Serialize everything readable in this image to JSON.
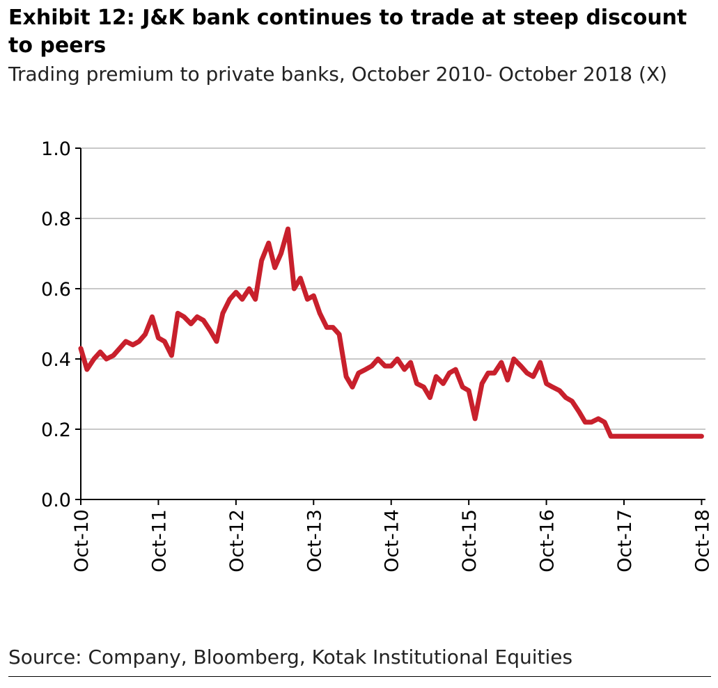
{
  "title": "Exhibit 12: J&K bank continues to trade at steep discount to peers",
  "subtitle": "Trading premium to private banks, October 2010- October 2018 (X)",
  "source": "Source: Company, Bloomberg, Kotak Institutional Equities",
  "chart_data": {
    "type": "line",
    "xlabel": "",
    "ylabel": "",
    "ylim": [
      0,
      1.0
    ],
    "xlim": [
      2010.75,
      2018.8
    ],
    "y_ticks": [
      "0.0",
      "0.2",
      "0.4",
      "0.6",
      "0.8",
      "1.0"
    ],
    "x_ticks": [
      "Oct-10",
      "Oct-11",
      "Oct-12",
      "Oct-13",
      "Oct-14",
      "Oct-15",
      "Oct-16",
      "Oct-17",
      "Oct-18"
    ],
    "grid": "horizontal",
    "legend": "none",
    "series_color": "#c8202c",
    "series": [
      {
        "x": [
          2010.75,
          2010.83,
          2010.92,
          2011.0,
          2011.08,
          2011.17,
          2011.25,
          2011.33,
          2011.42,
          2011.5,
          2011.58,
          2011.67,
          2011.75,
          2011.83,
          2011.92,
          2012.0,
          2012.08,
          2012.17,
          2012.25,
          2012.33,
          2012.42,
          2012.5,
          2012.58,
          2012.67,
          2012.75,
          2012.83,
          2012.92,
          2013.0,
          2013.08,
          2013.17,
          2013.25,
          2013.33,
          2013.42,
          2013.5,
          2013.58,
          2013.67,
          2013.75,
          2013.83,
          2013.92,
          2014.0,
          2014.08,
          2014.17,
          2014.25,
          2014.33,
          2014.42,
          2014.5,
          2014.58,
          2014.67,
          2014.75,
          2014.83,
          2014.92,
          2015.0,
          2015.08,
          2015.17,
          2015.25,
          2015.33,
          2015.42,
          2015.5,
          2015.58,
          2015.67,
          2015.75,
          2015.83,
          2015.92,
          2016.0,
          2016.08,
          2016.17,
          2016.25,
          2016.33,
          2016.42,
          2016.5,
          2016.58,
          2016.67,
          2016.75,
          2016.83,
          2016.92,
          2017.0,
          2017.08,
          2017.17,
          2017.25,
          2017.33,
          2017.42,
          2017.5,
          2017.58,
          2017.67,
          2017.75,
          2017.83,
          2017.92,
          2018.0,
          2018.08,
          2018.17,
          2018.25,
          2018.33,
          2018.42,
          2018.5,
          2018.58,
          2018.67,
          2018.75
        ],
        "values": [
          0.43,
          0.37,
          0.4,
          0.42,
          0.4,
          0.41,
          0.43,
          0.45,
          0.44,
          0.45,
          0.47,
          0.52,
          0.46,
          0.45,
          0.41,
          0.53,
          0.52,
          0.5,
          0.52,
          0.51,
          0.48,
          0.45,
          0.53,
          0.57,
          0.59,
          0.57,
          0.6,
          0.57,
          0.68,
          0.73,
          0.66,
          0.7,
          0.77,
          0.6,
          0.63,
          0.57,
          0.58,
          0.53,
          0.49,
          0.49,
          0.47,
          0.35,
          0.32,
          0.36,
          0.37,
          0.38,
          0.4,
          0.38,
          0.38,
          0.4,
          0.37,
          0.39,
          0.33,
          0.32,
          0.29,
          0.35,
          0.33,
          0.36,
          0.37,
          0.32,
          0.31,
          0.23,
          0.33,
          0.36,
          0.36,
          0.39,
          0.34,
          0.4,
          0.38,
          0.36,
          0.35,
          0.39,
          0.33,
          0.32,
          0.31,
          0.29,
          0.28,
          0.25,
          0.22,
          0.22,
          0.23,
          0.22,
          0.18,
          0.18,
          0.18,
          0.18,
          0.18,
          0.18,
          0.18,
          0.18,
          0.18,
          0.18,
          0.18,
          0.18,
          0.18,
          0.18,
          0.18
        ]
      }
    ]
  }
}
